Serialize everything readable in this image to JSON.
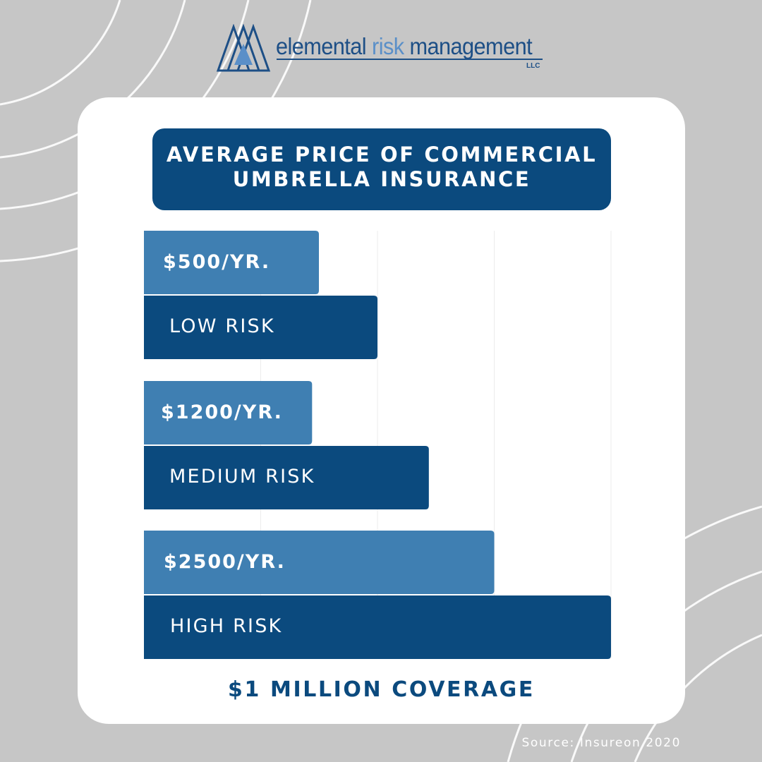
{
  "brand": {
    "name_part1": "elemental",
    "name_part2": "risk",
    "name_part3": "management",
    "suffix": "LLC"
  },
  "header": {
    "title_line1": "AVERAGE PRICE OF COMMERCIAL",
    "title_line2": "UMBRELLA INSURANCE"
  },
  "chart_data": {
    "type": "bar",
    "orientation": "horizontal",
    "title": "AVERAGE PRICE OF COMMERCIAL UMBRELLA INSURANCE",
    "categories": [
      "LOW RISK",
      "MEDIUM RISK",
      "HIGH RISK"
    ],
    "values": [
      500,
      1200,
      2500
    ],
    "value_labels": [
      "$500/YR.",
      "$1200/YR.",
      "$2500/YR."
    ],
    "xlabel": "$1 MILLION COVERAGE",
    "ylabel": "",
    "grid": true,
    "legend": "none",
    "colors": {
      "price_bar": "#3f7fb2",
      "risk_bar": "#0b4a7e",
      "grid": "#ececec"
    }
  },
  "footer": {
    "coverage": "$1 MILLION COVERAGE",
    "source": "Source: Insureon 2020"
  },
  "colors": {
    "background": "#c6c6c6",
    "card": "#ffffff",
    "brand_dark": "#0b4a7e",
    "brand_light": "#3f7fb2"
  }
}
